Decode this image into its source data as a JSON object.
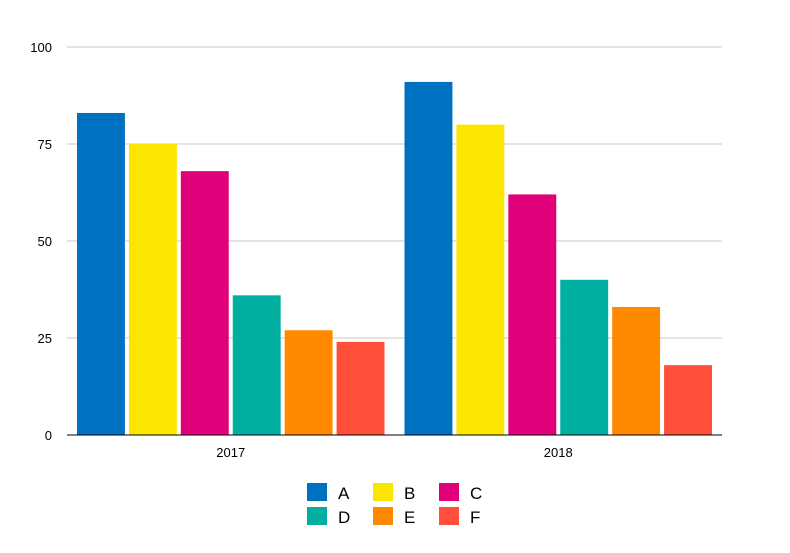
{
  "chart_data": {
    "type": "bar",
    "categories": [
      "2017",
      "2018"
    ],
    "series": [
      {
        "name": "A",
        "color": "#0070C0",
        "values": [
          83,
          91
        ]
      },
      {
        "name": "B",
        "color": "#FAE600",
        "values": [
          75,
          80
        ]
      },
      {
        "name": "C",
        "color": "#E0007A",
        "values": [
          68,
          62
        ]
      },
      {
        "name": "D",
        "color": "#00AFA0",
        "values": [
          36,
          40
        ]
      },
      {
        "name": "E",
        "color": "#FF8A00",
        "values": [
          27,
          33
        ]
      },
      {
        "name": "F",
        "color": "#FF4F3A",
        "values": [
          24,
          18
        ]
      }
    ],
    "y_ticks": [
      "0",
      "25",
      "50",
      "75",
      "100"
    ],
    "ylim": [
      0,
      100
    ],
    "grid": true,
    "legend_position": "bottom"
  }
}
